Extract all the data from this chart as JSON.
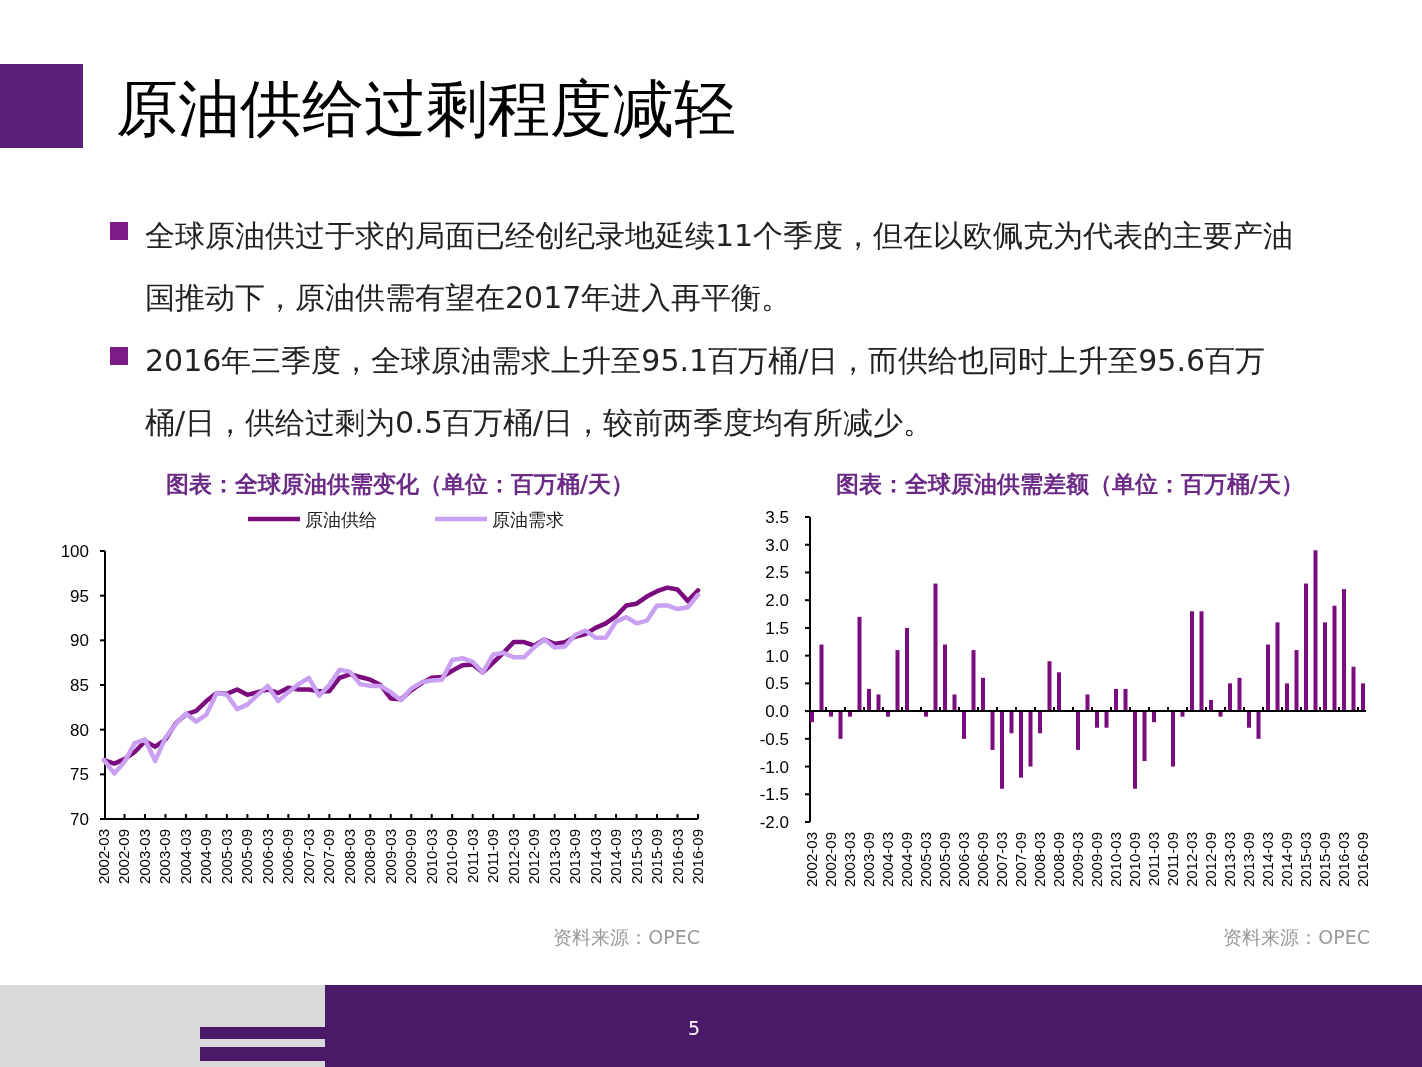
{
  "chart_data": [
    {
      "type": "other",
      "title": "原油供给过剩程度减轻",
      "annotations": [
        "全球原油供过于求的局面已经创纪录地延续11个季度，但在以欧佩克为代表的主要产油国推动下，原油供需有望在2017年进入再平衡。",
        "2016年三季度，全球原油需求上升至95.1百万桶/日，而供给也同时上升至95.6百万桶/日，供给过剩为0.5百万桶/日，较前两季度均有所减少。",
        "5"
      ]
    },
    {
      "type": "line",
      "title": "图表：全球原油供需变化（单位：百万桶/天）",
      "legend": "top",
      "line_style": "solid",
      "marker": "none",
      "categories": [
        "2002-03",
        null,
        "2002-09",
        null,
        "2003-03",
        null,
        "2003-09",
        null,
        "2004-03",
        null,
        "2004-09",
        null,
        "2005-03",
        null,
        "2005-09",
        null,
        "2006-03",
        null,
        "2006-09",
        null,
        "2007-03",
        null,
        "2007-09",
        null,
        "2008-03",
        null,
        "2008-09",
        null,
        "2009-03",
        null,
        "2009-09",
        null,
        "2010-03",
        null,
        "2010-09",
        null,
        "2011-03",
        null,
        "2011-09",
        null,
        "2012-03",
        null,
        "2012-09",
        null,
        "2013-03",
        null,
        "2013-09",
        null,
        "2014-03",
        null,
        "2014-09",
        null,
        "2015-03",
        null,
        "2015-09",
        null,
        "2016-03",
        null,
        "2016-09"
      ],
      "ylim": [
        70,
        100
      ],
      "yticks": [
        70,
        75,
        80,
        85,
        90,
        95,
        100
      ],
      "series": [
        {
          "name": "原油供给",
          "color": "#7b0c7e",
          "values": [
            76.6,
            76.2,
            76.7,
            77.5,
            78.7,
            78.1,
            78.9,
            80.7,
            81.7,
            82.1,
            83.2,
            84.1,
            84.0,
            84.5,
            83.9,
            84.2,
            84.5,
            84.1,
            84.7,
            84.5,
            84.5,
            84.3,
            84.3,
            85.8,
            86.2,
            85.9,
            85.6,
            85.0,
            83.5,
            83.4,
            84.4,
            85.2,
            85.8,
            85.9,
            86.6,
            87.2,
            87.3,
            86.4,
            87.5,
            88.6,
            89.8,
            89.8,
            89.4,
            90.1,
            89.6,
            89.8,
            90.4,
            90.7,
            91.4,
            91.9,
            92.7,
            93.9,
            94.1,
            94.9,
            95.5,
            95.9,
            95.7,
            94.4,
            95.6
          ]
        },
        {
          "name": "原油需求",
          "color": "#c9a0f2",
          "values": [
            76.6,
            75.1,
            76.4,
            78.5,
            78.9,
            76.5,
            79.1,
            80.6,
            81.8,
            80.9,
            81.7,
            84.1,
            83.9,
            82.3,
            82.8,
            83.9,
            84.9,
            83.2,
            84.2,
            85.1,
            85.8,
            83.8,
            85.0,
            86.7,
            86.5,
            85.1,
            84.9,
            84.9,
            84.2,
            83.3,
            84.6,
            85.3,
            85.5,
            85.6,
            87.8,
            88.0,
            87.6,
            86.4,
            88.4,
            88.6,
            88.1,
            88.1,
            89.2,
            90.1,
            89.2,
            89.3,
            90.6,
            91.1,
            90.3,
            90.3,
            92.1,
            92.6,
            91.9,
            92.2,
            93.9,
            93.9,
            93.5,
            93.7,
            95.1
          ]
        }
      ],
      "annotations": [
        "资料来源：OPEC"
      ]
    },
    {
      "type": "bar",
      "title": "图表：全球原油供需差额（单位：百万桶/天）",
      "color": "#7b0c7e",
      "categories": [
        "2002-03",
        null,
        "2002-09",
        null,
        "2003-03",
        null,
        "2003-09",
        null,
        "2004-03",
        null,
        "2004-09",
        null,
        "2005-03",
        null,
        "2005-09",
        null,
        "2006-03",
        null,
        "2006-09",
        null,
        "2007-03",
        null,
        "2007-09",
        null,
        "2008-03",
        null,
        "2008-09",
        null,
        "2009-03",
        null,
        "2009-09",
        null,
        "2010-03",
        null,
        "2010-09",
        null,
        "2011-03",
        null,
        "2011-09",
        null,
        "2012-03",
        null,
        "2012-09",
        null,
        "2013-03",
        null,
        "2013-09",
        null,
        "2014-03",
        null,
        "2014-09",
        null,
        "2015-03",
        null,
        "2015-09",
        null,
        "2016-03",
        null,
        "2016-09"
      ],
      "ylim": [
        -2,
        3.5
      ],
      "yticks": [
        {
          "value": -2,
          "label": "-2.0"
        },
        {
          "value": -1.5,
          "label": "-1.5"
        },
        {
          "value": -1,
          "label": "-1.0"
        },
        {
          "value": -0.5,
          "label": "-0.5"
        },
        {
          "value": 0,
          "label": "0.0"
        },
        {
          "value": 0.5,
          "label": "0.5"
        },
        {
          "value": 1,
          "label": "1.0"
        },
        {
          "value": 1.5,
          "label": "1.5"
        },
        {
          "value": 2,
          "label": "2.0"
        },
        {
          "value": 2.5,
          "label": "2.5"
        },
        {
          "value": 3,
          "label": "3.0"
        },
        {
          "value": 3.5,
          "label": "3.5"
        }
      ],
      "values": [
        -0.2,
        1.2,
        -0.1,
        -0.5,
        -0.1,
        1.7,
        0.4,
        0.3,
        -0.1,
        1.1,
        1.5,
        0,
        -0.1,
        2.3,
        1.2,
        0.3,
        -0.5,
        1.1,
        0.6,
        -0.7,
        -1.4,
        -0.4,
        -1.2,
        -1.0,
        -0.4,
        0.9,
        0.7,
        0,
        -0.7,
        0.3,
        -0.3,
        -0.3,
        0.4,
        0.4,
        -1.4,
        -0.9,
        -0.2,
        0,
        -1.0,
        -0.1,
        1.8,
        1.8,
        0.2,
        -0.1,
        0.5,
        0.6,
        -0.3,
        -0.5,
        1.2,
        1.6,
        0.5,
        1.1,
        2.3,
        2.9,
        1.6,
        1.9,
        2.2,
        0.8,
        0.5
      ],
      "annotations": [
        "资料来源：OPEC"
      ]
    }
  ]
}
